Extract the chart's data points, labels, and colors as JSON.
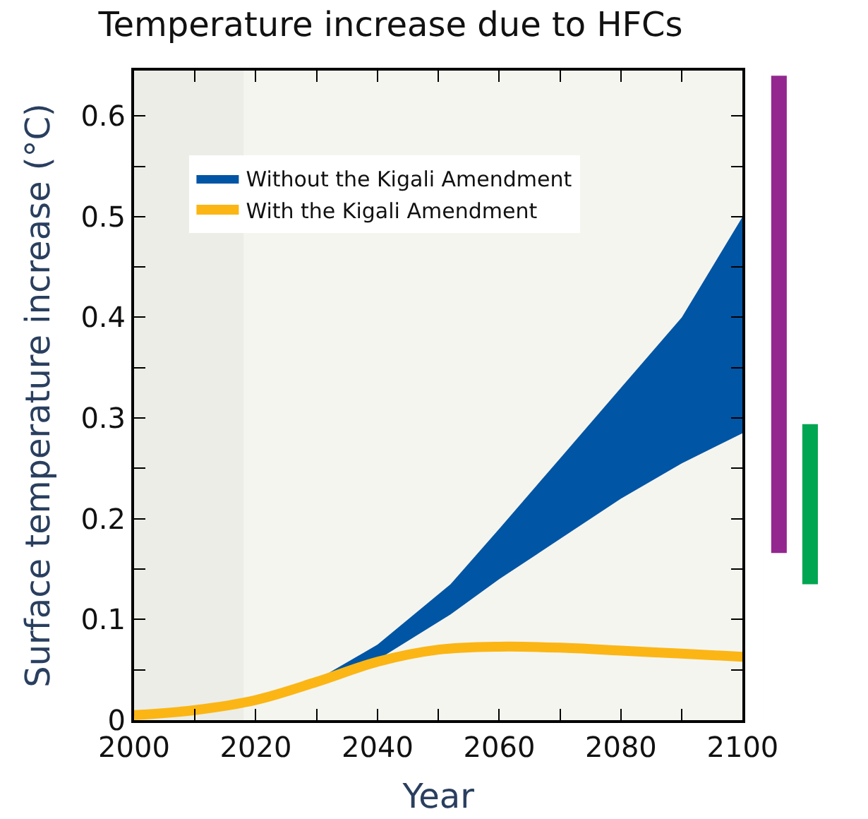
{
  "chart_data": [
    {
      "type": "area",
      "title": "Temperature increase due to HFCs",
      "xlabel": "Year",
      "ylabel": "Surface temperature increase (°C)",
      "xlim": [
        2000,
        2100
      ],
      "ylim": [
        0,
        0.645
      ],
      "xticks": [
        2000,
        {
          "value": 2010,
          "label": null
        },
        2020,
        {
          "value": 2030,
          "label": null
        },
        2040,
        {
          "value": 2050,
          "label": null
        },
        2060,
        {
          "value": 2070,
          "label": null
        },
        2080,
        {
          "value": 2090,
          "label": null
        },
        2100
      ],
      "yticks": [
        0,
        {
          "value": 0.05,
          "label": null
        },
        0.1,
        {
          "value": 0.15,
          "label": null
        },
        0.2,
        {
          "value": 0.25,
          "label": null
        },
        0.3,
        {
          "value": 0.35,
          "label": null
        },
        0.4,
        {
          "value": 0.45,
          "label": null
        },
        0.5,
        {
          "value": 0.55,
          "label": null
        },
        0.6
      ],
      "legend": "top left",
      "series": [
        {
          "name": "Without the Kigali Amendment",
          "color": "#0055a4",
          "x": [
            2020,
            2030,
            2040,
            2052,
            2060,
            2070,
            2080,
            2090,
            2100
          ],
          "values": [
            null,
            null,
            null,
            null,
            null,
            null,
            null,
            null,
            null
          ],
          "upper": [
            0.02,
            0.04,
            0.075,
            0.135,
            0.19,
            0.26,
            0.33,
            0.4,
            0.5
          ],
          "lower": [
            0.02,
            0.037,
            0.06,
            0.105,
            0.14,
            0.18,
            0.22,
            0.255,
            0.285
          ]
        },
        {
          "name": "With the Kigali Amendment",
          "type": "line",
          "color": "#fbb615",
          "x": [
            2000,
            2010,
            2020,
            2030,
            2040,
            2050,
            2060,
            2070,
            2080,
            2090,
            2100
          ],
          "values": [
            0.005,
            0.01,
            0.02,
            0.038,
            0.058,
            0.07,
            0.073,
            0.072,
            0.069,
            0.066,
            0.063
          ]
        }
      ],
      "bands": [
        {
          "axis": "x",
          "from": 2000,
          "to": 2018,
          "color": "#ecede6"
        }
      ]
    },
    {
      "type": "bar",
      "categories": [
        null,
        null
      ],
      "base": [
        0.166,
        0.135
      ],
      "values": [
        0.474,
        0.159
      ],
      "colors": [
        "#93278f",
        "#00a651"
      ],
      "ylim": [
        0,
        0.645
      ],
      "tick_labels": false
    }
  ]
}
